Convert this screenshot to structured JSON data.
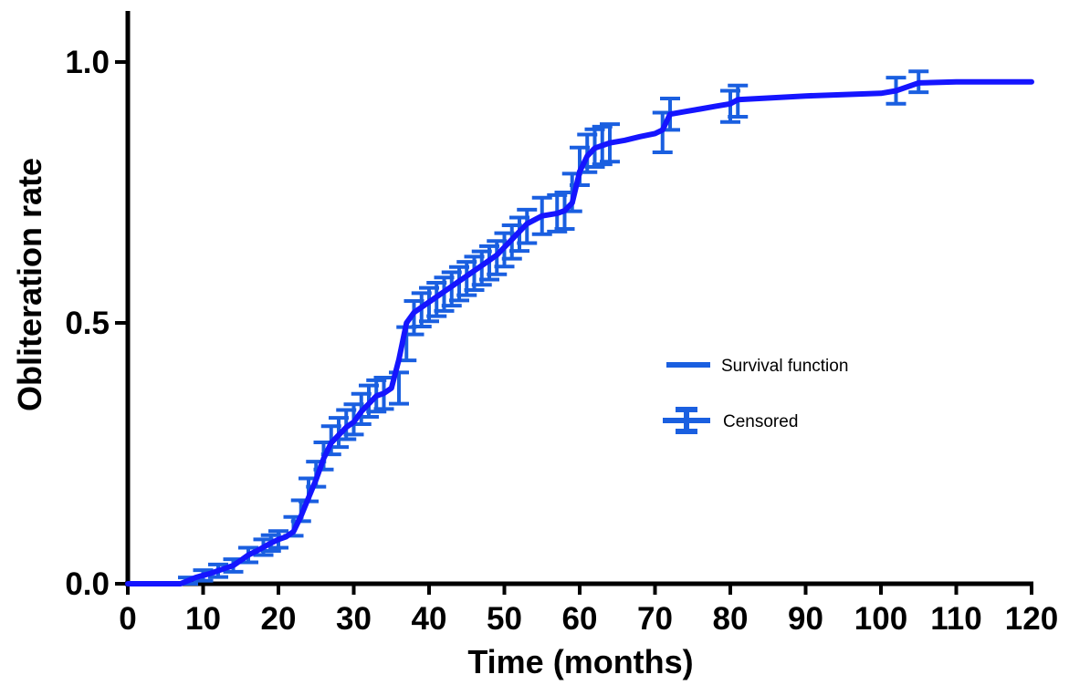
{
  "chart_data": {
    "type": "line",
    "title": "",
    "xlabel": "Time (months)",
    "ylabel": "Obliteration rate",
    "xlim": [
      0,
      120
    ],
    "ylim": [
      0,
      1.1
    ],
    "x_ticks": [
      0,
      10,
      20,
      30,
      40,
      50,
      60,
      70,
      80,
      90,
      100,
      110,
      120
    ],
    "x_tick_labels": [
      "0",
      "10",
      "20",
      "30",
      "40",
      "50",
      "60",
      "70",
      "80",
      "90",
      "100",
      "110",
      "120"
    ],
    "y_ticks": [
      0,
      0.5,
      1.0
    ],
    "y_tick_labels": [
      "0.0",
      "0.5",
      "1.0"
    ],
    "grid": false,
    "legend_position": "right-center",
    "colors": {
      "line": "#1515ff",
      "censored": "#1a5fe0",
      "axis": "#000000"
    },
    "series": [
      {
        "name": "Survival function",
        "x": [
          0,
          7,
          8,
          9,
          10,
          11,
          12,
          13,
          14,
          15,
          16,
          17,
          18,
          19,
          20,
          21,
          22,
          23,
          24,
          25,
          26,
          27,
          28,
          29,
          30,
          31,
          32,
          33,
          34,
          35,
          36,
          37,
          38,
          39,
          40,
          41,
          42,
          43,
          44,
          45,
          46,
          47,
          48,
          49,
          50,
          51,
          52,
          53,
          55,
          57,
          58,
          59,
          60,
          61,
          62,
          63,
          64,
          66,
          68,
          70,
          71,
          72,
          74,
          76,
          78,
          80,
          81,
          90,
          100,
          102,
          105,
          110,
          120
        ],
        "y": [
          0,
          0,
          0.006,
          0.012,
          0.016,
          0.02,
          0.025,
          0.03,
          0.035,
          0.045,
          0.055,
          0.062,
          0.07,
          0.078,
          0.085,
          0.09,
          0.1,
          0.13,
          0.165,
          0.2,
          0.24,
          0.27,
          0.285,
          0.3,
          0.31,
          0.33,
          0.345,
          0.36,
          0.365,
          0.375,
          0.43,
          0.5,
          0.52,
          0.53,
          0.54,
          0.55,
          0.56,
          0.57,
          0.58,
          0.59,
          0.6,
          0.61,
          0.62,
          0.63,
          0.645,
          0.66,
          0.675,
          0.69,
          0.705,
          0.71,
          0.715,
          0.73,
          0.79,
          0.82,
          0.835,
          0.84,
          0.845,
          0.85,
          0.857,
          0.863,
          0.87,
          0.9,
          0.905,
          0.91,
          0.915,
          0.92,
          0.928,
          0.935,
          0.94,
          0.945,
          0.96,
          0.962,
          0.962
        ]
      }
    ],
    "censored": {
      "name": "Censored",
      "x": [
        8,
        10,
        12,
        14,
        16,
        18,
        19,
        20,
        22,
        23,
        24,
        25,
        26,
        27,
        28,
        29,
        30,
        31,
        32,
        33,
        34,
        36,
        37,
        38,
        39,
        40,
        41,
        42,
        43,
        44,
        45,
        46,
        47,
        48,
        49,
        50,
        51,
        52,
        53,
        55,
        57,
        58,
        59,
        60,
        61,
        62,
        63,
        64,
        71,
        72,
        80,
        81,
        102,
        105
      ],
      "y": [
        0.006,
        0.016,
        0.025,
        0.035,
        0.055,
        0.07,
        0.078,
        0.085,
        0.11,
        0.14,
        0.18,
        0.21,
        0.245,
        0.275,
        0.29,
        0.305,
        0.315,
        0.335,
        0.35,
        0.36,
        0.365,
        0.375,
        0.46,
        0.51,
        0.525,
        0.535,
        0.545,
        0.555,
        0.565,
        0.575,
        0.585,
        0.595,
        0.605,
        0.615,
        0.625,
        0.64,
        0.655,
        0.67,
        0.685,
        0.705,
        0.71,
        0.715,
        0.75,
        0.8,
        0.825,
        0.835,
        0.84,
        0.845,
        0.865,
        0.9,
        0.915,
        0.925,
        0.945,
        0.962
      ],
      "err": [
        0.006,
        0.01,
        0.012,
        0.012,
        0.014,
        0.015,
        0.015,
        0.016,
        0.018,
        0.02,
        0.022,
        0.024,
        0.026,
        0.027,
        0.028,
        0.028,
        0.029,
        0.029,
        0.03,
        0.03,
        0.03,
        0.03,
        0.032,
        0.032,
        0.032,
        0.032,
        0.032,
        0.032,
        0.032,
        0.032,
        0.032,
        0.032,
        0.032,
        0.032,
        0.032,
        0.032,
        0.032,
        0.032,
        0.032,
        0.035,
        0.035,
        0.035,
        0.036,
        0.036,
        0.036,
        0.036,
        0.036,
        0.036,
        0.038,
        0.03,
        0.03,
        0.03,
        0.025,
        0.02
      ]
    }
  },
  "legend": {
    "items": [
      {
        "label": "Survival function",
        "kind": "line"
      },
      {
        "label": "Censored",
        "kind": "errorbar"
      }
    ]
  }
}
